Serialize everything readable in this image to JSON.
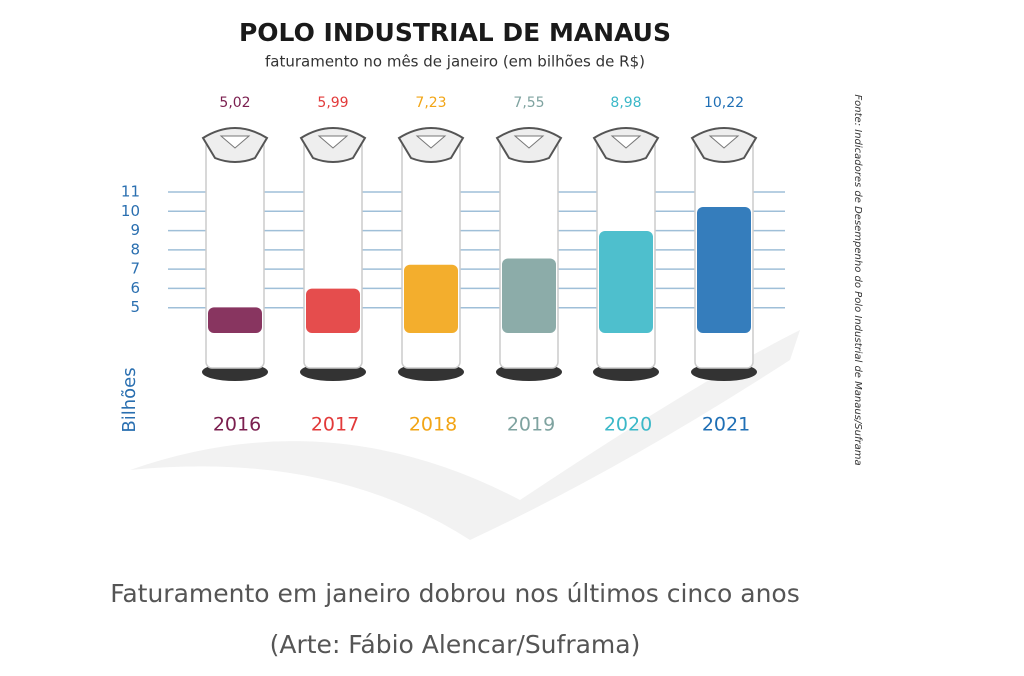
{
  "chart_data": {
    "type": "bar",
    "title": "POLO INDUSTRIAL DE MANAUS",
    "subtitle": "faturamento no mês de janeiro (em bilhões de R$)",
    "categories": [
      "2016",
      "2017",
      "2018",
      "2019",
      "2020",
      "2021"
    ],
    "values": [
      5.02,
      5.99,
      7.23,
      7.55,
      8.98,
      10.22
    ],
    "value_labels": [
      "5,02",
      "5,99",
      "7,23",
      "7,55",
      "8,98",
      "10,22"
    ],
    "colors": [
      "#7b1f4f",
      "#e23a3a",
      "#f2a516",
      "#7fa3a0",
      "#3bb8c8",
      "#1f6fb5"
    ],
    "ylabel": "Bilhões",
    "ylim": [
      4,
      11
    ],
    "yticks": [
      5,
      6,
      7,
      8,
      9,
      10,
      11
    ],
    "grid": true,
    "source": "Fonte: Indicadores de Desempenho do Polo Industrial de Manaus/Suframa",
    "caption": [
      "Faturamento em janeiro dobrou nos últimos cinco anos",
      "(Arte: Fábio Alencar/Suframa)"
    ]
  }
}
